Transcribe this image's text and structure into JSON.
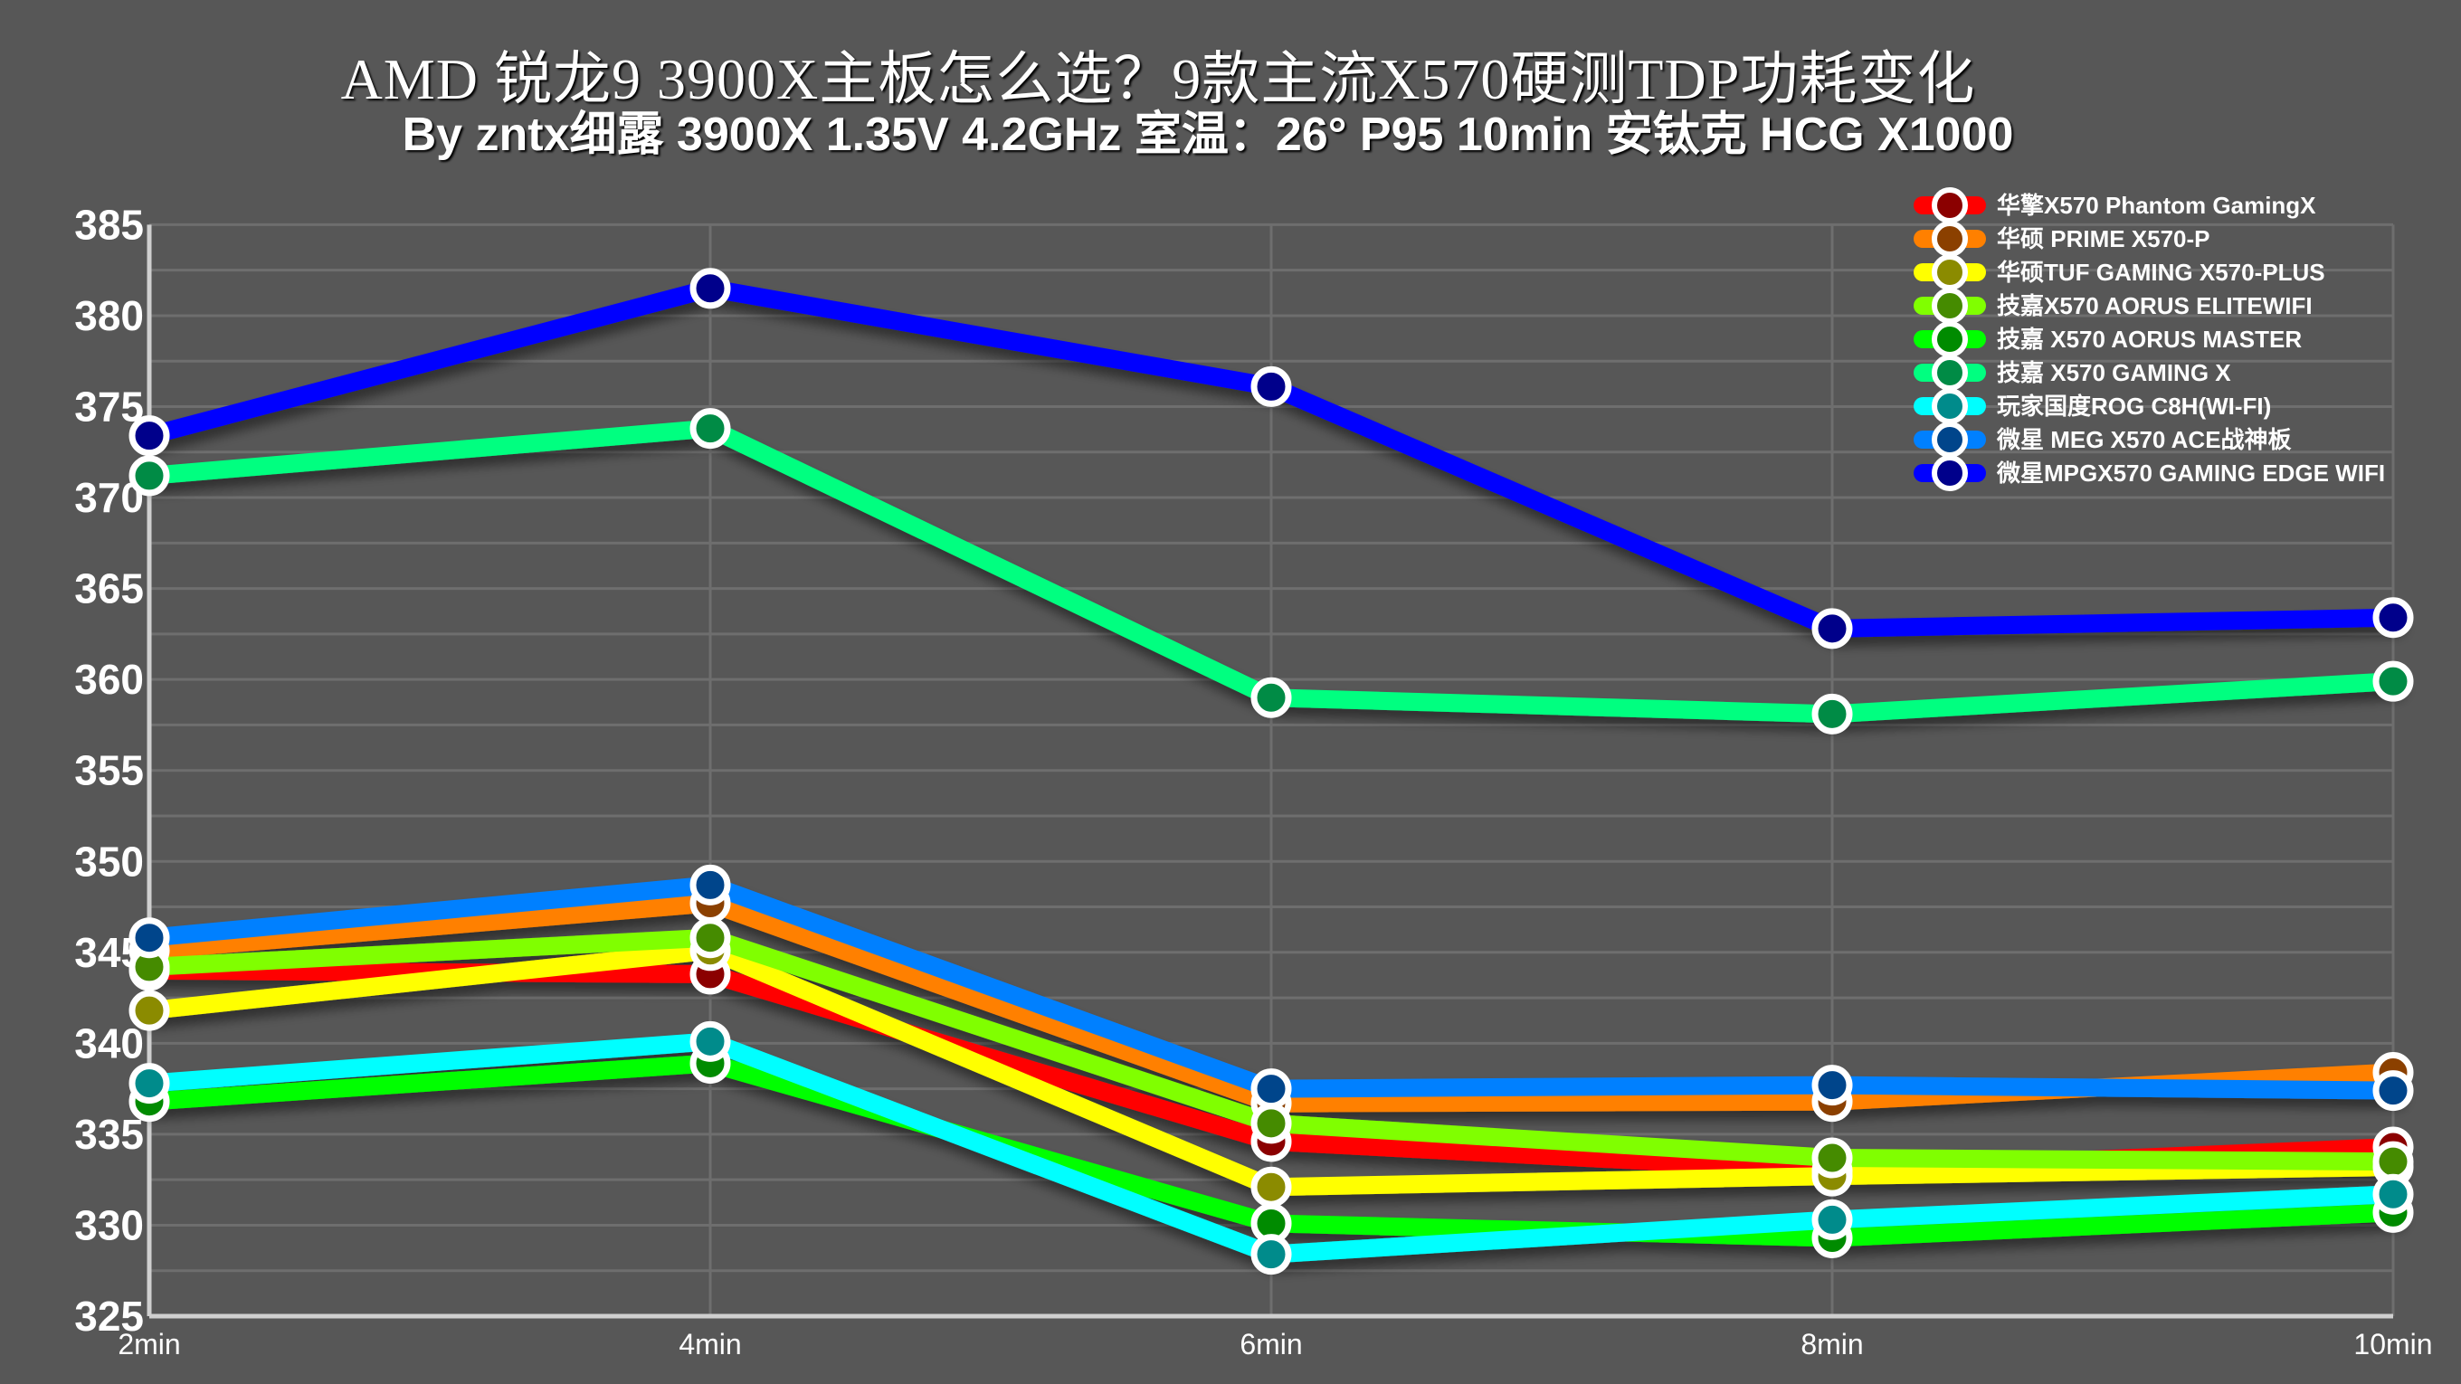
{
  "header": {
    "title": "AMD 锐龙9 3900X主板怎么选？9款主流X570硬测TDP功耗变化",
    "subtitle": "By  zntx细露 3900X 1.35V 4.2GHz 室温：26° P95 10min 安钛克 HCG X1000"
  },
  "colors": {
    "background": "#575757",
    "grid": "#6e6e6e",
    "axis": "#cfcfcf",
    "text": "#ffffff"
  },
  "chart_data": {
    "type": "line",
    "title": "AMD 锐龙9 3900X主板怎么选？9款主流X570硬测TDP功耗变化",
    "subtitle": "By  zntx细露 3900X 1.35V 4.2GHz 室温：26° P95 10min 安钛克 HCG X1000",
    "xlabel": "",
    "ylabel": "",
    "categories": [
      "2min",
      "4min",
      "6min",
      "8min",
      "10min"
    ],
    "ylim": [
      325,
      385
    ],
    "yticks": [
      385,
      380,
      375,
      370,
      365,
      360,
      355,
      350,
      345,
      340,
      335,
      330,
      325
    ],
    "grid": true,
    "minor_grid_step": 2.5,
    "legend_position": "top-right",
    "series": [
      {
        "name": "华擎X570 Phantom GamingX",
        "line_color": "#ff0000",
        "marker_color": "#8b0000",
        "values": [
          344.0,
          343.8,
          334.6,
          333.0,
          334.3
        ]
      },
      {
        "name": "华硕 PRIME X570-P",
        "line_color": "#ff8000",
        "marker_color": "#8b4000",
        "values": [
          345.1,
          347.7,
          336.7,
          336.8,
          338.4
        ]
      },
      {
        "name": "华硕TUF GAMING X570-PLUS",
        "line_color": "#ffff00",
        "marker_color": "#8b8b00",
        "values": [
          341.8,
          345.1,
          332.1,
          332.7,
          333.2
        ]
      },
      {
        "name": "技嘉X570 AORUS ELITEWIFI",
        "line_color": "#80ff00",
        "marker_color": "#458b00",
        "values": [
          344.2,
          345.8,
          335.6,
          333.7,
          333.5
        ]
      },
      {
        "name": "技嘉 X570 AORUS MASTER",
        "line_color": "#00ff00",
        "marker_color": "#008b00",
        "values": [
          336.8,
          338.9,
          330.1,
          329.3,
          330.7
        ]
      },
      {
        "name": "技嘉 X570 GAMING X",
        "line_color": "#00ff80",
        "marker_color": "#008b45",
        "values": [
          371.2,
          373.8,
          359.0,
          358.1,
          359.9
        ]
      },
      {
        "name": "玩家国度ROG C8H(WI-FI)",
        "line_color": "#00ffff",
        "marker_color": "#008b8b",
        "values": [
          337.8,
          340.1,
          328.4,
          330.3,
          331.7
        ]
      },
      {
        "name": "微星 MEG X570 ACE战神板",
        "line_color": "#0080ff",
        "marker_color": "#00458b",
        "values": [
          345.8,
          348.7,
          337.5,
          337.7,
          337.4
        ]
      },
      {
        "name": "微星MPGX570 GAMING EDGE WIFI",
        "line_color": "#0000ff",
        "marker_color": "#00008b",
        "values": [
          373.4,
          381.5,
          376.1,
          362.8,
          363.4
        ]
      }
    ]
  }
}
